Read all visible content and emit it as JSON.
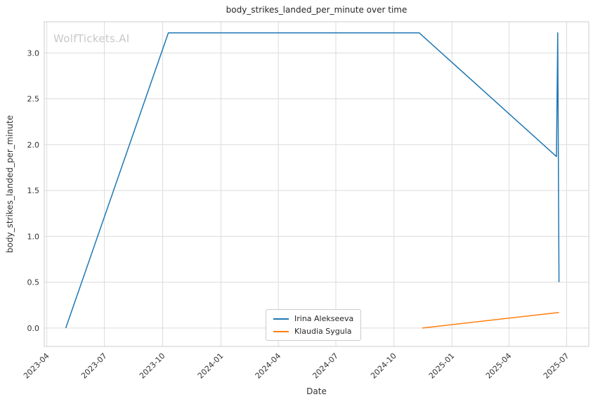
{
  "watermark": "WolfTickets.AI",
  "chart_data": {
    "type": "line",
    "title": "body_strikes_landed_per_minute over time",
    "xlabel": "Date",
    "ylabel": "body_strikes_landed_per_minute",
    "grid": true,
    "legend_position": "lower center",
    "x_ticks": [
      "2023-04",
      "2023-07",
      "2023-10",
      "2024-01",
      "2024-04",
      "2024-07",
      "2024-10",
      "2025-01",
      "2025-04",
      "2025-07"
    ],
    "y_ticks": [
      "0.0",
      "0.5",
      "1.0",
      "1.5",
      "2.0",
      "2.5",
      "3.0"
    ],
    "xlim": [
      "2023-03-28",
      "2025-08-05"
    ],
    "ylim": [
      -0.2,
      3.34
    ],
    "series": [
      {
        "name": "Irina Alekseeva",
        "color": "#1f77b4",
        "points": [
          [
            "2023-05-01",
            0.0
          ],
          [
            "2023-10-10",
            3.22
          ],
          [
            "2024-11-10",
            3.22
          ],
          [
            "2025-06-15",
            1.87
          ],
          [
            "2025-06-17",
            3.22
          ],
          [
            "2025-06-19",
            0.5
          ]
        ]
      },
      {
        "name": "Klaudia Sygula",
        "color": "#ff7f0e",
        "points": [
          [
            "2024-11-15",
            0.0
          ],
          [
            "2025-06-19",
            0.17
          ]
        ]
      }
    ]
  }
}
